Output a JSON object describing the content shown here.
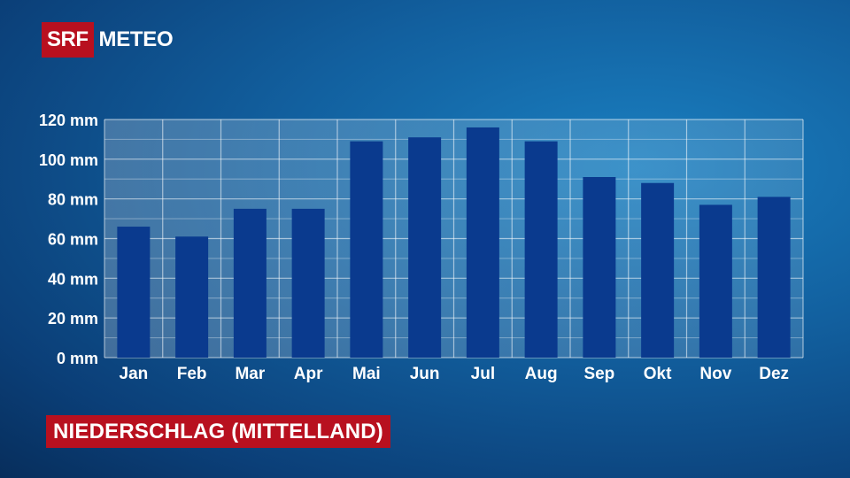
{
  "brand": {
    "logo_box": "SRF",
    "logo_text": "METEO",
    "accent_red": "#b8101f",
    "bar_color": "#0a3a8e"
  },
  "chart_data": {
    "type": "bar",
    "title": "NIEDERSCHLAG (MITTELLAND)",
    "categories": [
      "Jan",
      "Feb",
      "Mar",
      "Apr",
      "Mai",
      "Jun",
      "Jul",
      "Aug",
      "Sep",
      "Okt",
      "Nov",
      "Dez"
    ],
    "values": [
      66,
      61,
      75,
      75,
      109,
      111,
      116,
      109,
      91,
      88,
      77,
      81
    ],
    "ylim": [
      0,
      120
    ],
    "yticks": [
      0,
      20,
      40,
      60,
      80,
      100,
      120
    ],
    "ytick_labels": [
      "0 mm",
      "20 mm",
      "40 mm",
      "60 mm",
      "80 mm",
      "100 mm",
      "120 mm"
    ],
    "grid": true,
    "legend": "none"
  }
}
